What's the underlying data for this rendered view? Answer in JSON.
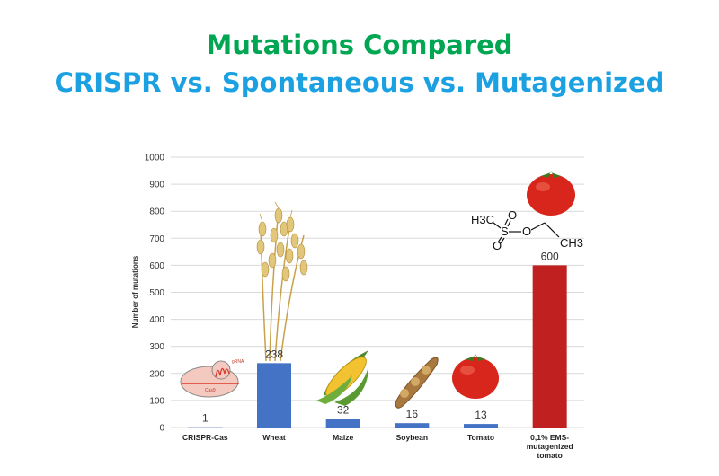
{
  "header": {
    "title_line1": "Mutations Compared",
    "title_line2": "CRISPR vs. Spontaneous vs. Mutagenized"
  },
  "colors": {
    "title_green": "#00a651",
    "title_blue": "#1ba1e2",
    "bar_blue": "#4472c4",
    "bar_red": "#c0201f",
    "grid": "#d9d9d9"
  },
  "icons": [
    "cas9-diagram-icon",
    "wheat-icon",
    "maize-icon",
    "soybean-icon",
    "tomato-icon",
    "ems-molecule-icon"
  ],
  "illustration_labels": {
    "cas9_label": "Cas9",
    "grna_label": "gRNA",
    "molecule_h3c": "H3C",
    "molecule_s": "S",
    "molecule_o1": "O",
    "molecule_o2": "O",
    "molecule_o3": "O",
    "molecule_ch3": "CH3"
  },
  "chart_data": {
    "type": "bar",
    "title": "",
    "xlabel": "",
    "ylabel": "Number of mutations",
    "categories": [
      "CRISPR-Cas",
      "Wheat",
      "Maize",
      "Soybean",
      "Tomato",
      "0,1% EMS-mutagenized tomato"
    ],
    "category_lines": [
      [
        "CRISPR-Cas"
      ],
      [
        "Wheat"
      ],
      [
        "Maize"
      ],
      [
        "Soybean"
      ],
      [
        "Tomato"
      ],
      [
        "0,1% EMS-",
        "mutagenized",
        "tomato"
      ]
    ],
    "values": [
      1,
      238,
      32,
      16,
      13,
      600
    ],
    "data_labels": [
      "1",
      "238",
      "32",
      "16",
      "13",
      "600"
    ],
    "bar_colors": [
      "#4472c4",
      "#4472c4",
      "#4472c4",
      "#4472c4",
      "#4472c4",
      "#c0201f"
    ],
    "yticks": [
      "0",
      "100",
      "200",
      "300",
      "400",
      "500",
      "600",
      "700",
      "800",
      "900",
      "1000"
    ],
    "ylim": [
      0,
      1000
    ],
    "grid": true,
    "legend": "none"
  }
}
